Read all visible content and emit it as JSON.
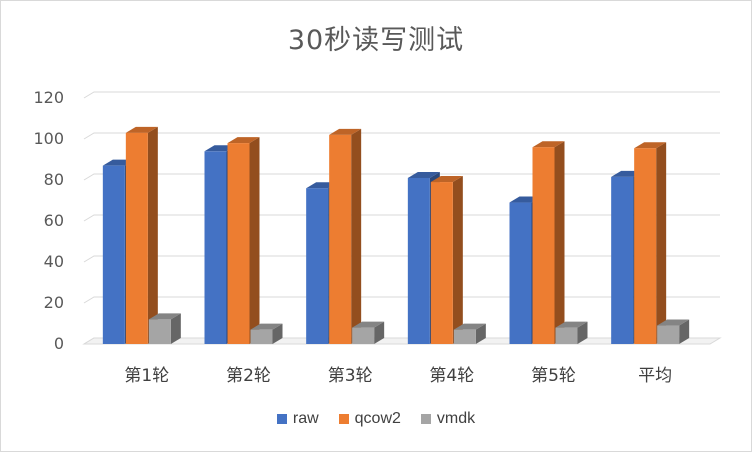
{
  "chart_data": {
    "type": "bar",
    "title": "30秒读写测试",
    "categories": [
      "第1轮",
      "第2轮",
      "第3轮",
      "第4轮",
      "第5轮",
      "平均"
    ],
    "series": [
      {
        "name": "raw",
        "values": [
          87,
          94,
          76,
          81,
          69,
          81.5
        ],
        "color": "#4472c4"
      },
      {
        "name": "qcow2",
        "values": [
          103,
          98,
          102,
          79,
          96,
          95.5
        ],
        "color": "#ed7d31"
      },
      {
        "name": "vmdk",
        "values": [
          12,
          7,
          8,
          7,
          8,
          9
        ],
        "color": "#a5a5a5"
      }
    ],
    "yticks": [
      "0",
      "20",
      "40",
      "60",
      "80",
      "100",
      "120"
    ],
    "ylim": [
      0,
      120
    ],
    "grid": true,
    "legend": "bottom"
  }
}
